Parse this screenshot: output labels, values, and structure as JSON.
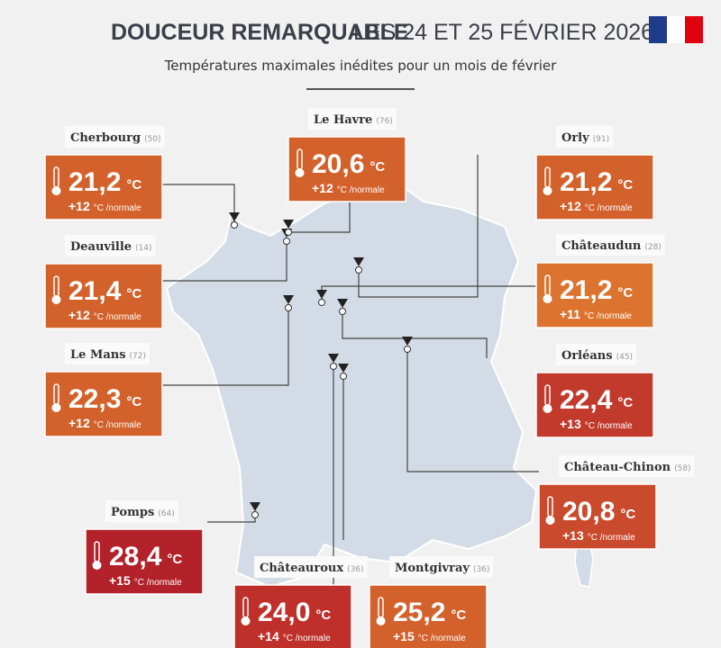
{
  "header": {
    "title": "DOUCEUR REMARQUABLE",
    "date": "LES 24 ET 25 FÉVRIER 2026",
    "subtitle": "Températures maximales inédites pour un mois de février"
  },
  "unit": "°C",
  "normal_suffix": "°C /normale",
  "stations": [
    {
      "name": "Cherbourg",
      "dept": "(50)",
      "temp": "21,2",
      "anomaly": "+12",
      "color": "#d3612b"
    },
    {
      "name": "Deauville",
      "dept": "(14)",
      "temp": "21,4",
      "anomaly": "+12",
      "color": "#d3612b"
    },
    {
      "name": "Le Mans",
      "dept": "(72)",
      "temp": "22,3",
      "anomaly": "+12",
      "color": "#d3612b"
    },
    {
      "name": "Le Havre",
      "dept": "(76)",
      "temp": "20,6",
      "anomaly": "+12",
      "color": "#d3612b"
    },
    {
      "name": "Orly",
      "dept": "(91)",
      "temp": "21,2",
      "anomaly": "+12",
      "color": "#d3612b"
    },
    {
      "name": "Châteaudun",
      "dept": "(28)",
      "temp": "21,2",
      "anomaly": "+11",
      "color": "#dc7430"
    },
    {
      "name": "Orléans",
      "dept": "(45)",
      "temp": "22,4",
      "anomaly": "+13",
      "color": "#c23a2c"
    },
    {
      "name": "Château-Chinon",
      "dept": "(58)",
      "temp": "20,8",
      "anomaly": "+13",
      "color": "#c94a2c"
    },
    {
      "name": "Pomps",
      "dept": "(64)",
      "temp": "28,4",
      "anomaly": "+15",
      "color": "#b3222a"
    },
    {
      "name": "Châteauroux",
      "dept": "(36)",
      "temp": "24,0",
      "anomaly": "+14",
      "color": "#bf302b"
    },
    {
      "name": "Montgivray",
      "dept": "(36)",
      "temp": "25,2",
      "anomaly": "+15",
      "color": "#d3612b"
    }
  ]
}
